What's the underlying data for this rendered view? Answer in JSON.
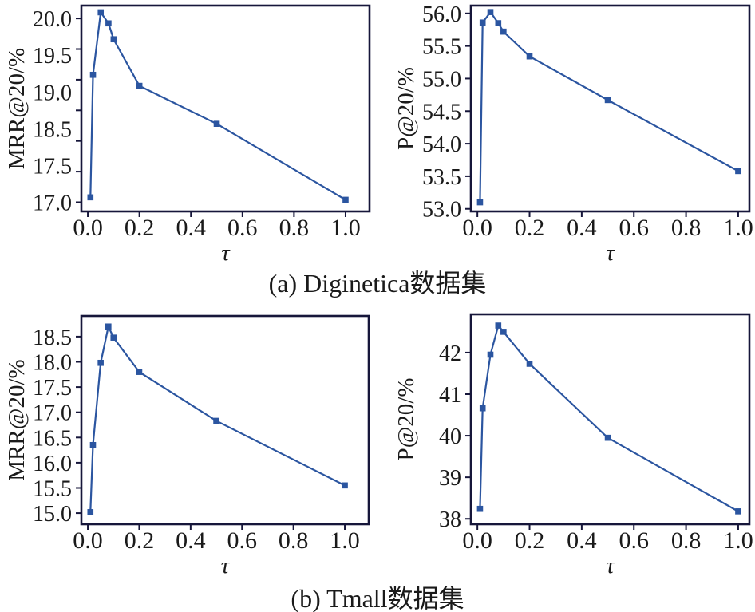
{
  "page": {
    "background": "#ffffff",
    "figure_type": "2x2 line chart grid, temperature ablation study"
  },
  "style": {
    "line_color": "#2b55a0",
    "marker_color": "#2b55a0",
    "frame_color": "#16163a",
    "text_color": "#1a1a1a"
  },
  "captions": {
    "a": "(a) Diginetica数据集",
    "b": "(b) Tmall数据集"
  },
  "chart_data": [
    {
      "id": "diginetica-mrr",
      "type": "line",
      "title": "",
      "xlabel": "τ",
      "ylabel": "MRR@20/%",
      "legend": "none",
      "grid": false,
      "marker": "square",
      "x": [
        0.01,
        0.02,
        0.05,
        0.08,
        0.1,
        0.2,
        0.5,
        1.0
      ],
      "values": [
        17.08,
        19.08,
        20.1,
        19.92,
        19.66,
        18.9,
        18.28,
        17.04
      ],
      "xticks": [
        0.0,
        0.2,
        0.4,
        0.6,
        0.8,
        1.0
      ],
      "xtick_labels": [
        "0.0",
        "0.2",
        "0.4",
        "0.6",
        "0.8",
        "1.0"
      ],
      "yticks": [
        17.0,
        17.5,
        18.0,
        18.5,
        19.0,
        19.5,
        20.0
      ],
      "ytick_labels_top_to_bottom": [
        "20.0",
        "19.5",
        "19.0",
        "18.5",
        "17.5",
        "17.0"
      ],
      "ytick_labels_evenly_spaced_as_printed": true,
      "xlim": [
        -0.025,
        1.093
      ],
      "ylim": [
        16.85,
        20.21
      ]
    },
    {
      "id": "diginetica-p",
      "type": "line",
      "title": "",
      "xlabel": "τ",
      "ylabel": "P@20/%",
      "legend": "none",
      "grid": false,
      "marker": "square",
      "x": [
        0.01,
        0.02,
        0.05,
        0.08,
        0.1,
        0.2,
        0.5,
        1.0
      ],
      "values": [
        53.1,
        55.86,
        56.02,
        55.85,
        55.72,
        55.34,
        54.67,
        53.58
      ],
      "xticks": [
        0.0,
        0.2,
        0.4,
        0.6,
        0.8,
        1.0
      ],
      "xtick_labels": [
        "0.0",
        "0.2",
        "0.4",
        "0.6",
        "0.8",
        "1.0"
      ],
      "yticks": [
        53.0,
        53.5,
        54.0,
        54.5,
        55.0,
        55.5,
        56.0
      ],
      "ytick_labels_top_to_bottom": [
        "56.0",
        "55.5",
        "55.0",
        "54.5",
        "54.0",
        "53.5",
        "53.0"
      ],
      "ytick_labels_evenly_spaced_as_printed": false,
      "xlim": [
        -0.025,
        1.043
      ],
      "ylim": [
        52.96,
        56.12
      ]
    },
    {
      "id": "tmall-mrr",
      "type": "line",
      "title": "",
      "xlabel": "τ",
      "ylabel": "MRR@20/%",
      "legend": "none",
      "grid": false,
      "marker": "square",
      "x": [
        0.01,
        0.02,
        0.05,
        0.08,
        0.1,
        0.2,
        0.5,
        1.0
      ],
      "values": [
        15.02,
        16.35,
        17.98,
        18.7,
        18.48,
        17.8,
        16.83,
        15.55
      ],
      "xticks": [
        0.0,
        0.2,
        0.4,
        0.6,
        0.8,
        1.0
      ],
      "xtick_labels": [
        "0.0",
        "0.2",
        "0.4",
        "0.6",
        "0.8",
        "1.0"
      ],
      "yticks": [
        15.0,
        15.5,
        16.0,
        16.5,
        17.0,
        17.5,
        18.0,
        18.5
      ],
      "ytick_labels_top_to_bottom": [
        "18.5",
        "18.0",
        "17.5",
        "17.0",
        "16.5",
        "16.0",
        "15.5",
        "15.0"
      ],
      "ytick_labels_evenly_spaced_as_printed": false,
      "xlim": [
        -0.025,
        1.093
      ],
      "ylim": [
        14.78,
        18.91
      ]
    },
    {
      "id": "tmall-p",
      "type": "line",
      "title": "",
      "xlabel": "τ",
      "ylabel": "P@20/%",
      "legend": "none",
      "grid": false,
      "marker": "square",
      "x": [
        0.01,
        0.02,
        0.05,
        0.08,
        0.1,
        0.2,
        0.5,
        1.0
      ],
      "values": [
        38.24,
        40.66,
        41.95,
        42.65,
        42.5,
        41.73,
        39.95,
        38.18
      ],
      "xticks": [
        0.0,
        0.2,
        0.4,
        0.6,
        0.8,
        1.0
      ],
      "xtick_labels": [
        "0.0",
        "0.2",
        "0.4",
        "0.6",
        "0.8",
        "1.0"
      ],
      "yticks": [
        38,
        39,
        40,
        41,
        42
      ],
      "ytick_labels_top_to_bottom": [
        "42",
        "41",
        "40",
        "39",
        "38"
      ],
      "ytick_labels_evenly_spaced_as_printed": false,
      "xlim": [
        -0.025,
        1.043
      ],
      "ylim": [
        37.87,
        42.92
      ]
    }
  ]
}
